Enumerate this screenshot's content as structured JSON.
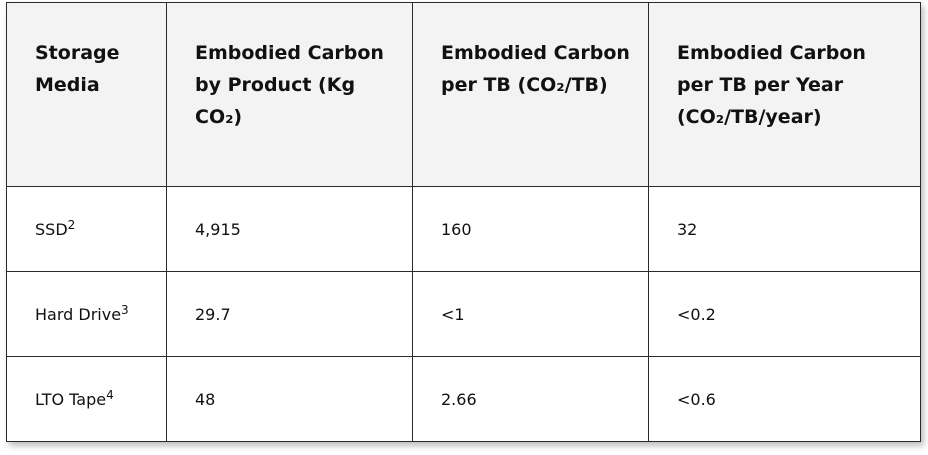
{
  "table": {
    "header": [
      "Storage Media",
      "Embodied Carbon by Product (Kg CO₂)",
      "Embodied Carbon per TB (CO₂/TB)",
      "Embodied Carbon per TB per Year (CO₂/TB/year)"
    ],
    "rows": [
      [
        {
          "text": "SSD",
          "sup": "2"
        },
        "4,915",
        "160",
        "32"
      ],
      [
        {
          "text": "Hard Drive",
          "sup": "3"
        },
        "29.7",
        "<1",
        "<0.2"
      ],
      [
        {
          "text": "LTO Tape",
          "sup": "4"
        },
        "48",
        "2.66",
        "<0.6"
      ]
    ]
  }
}
